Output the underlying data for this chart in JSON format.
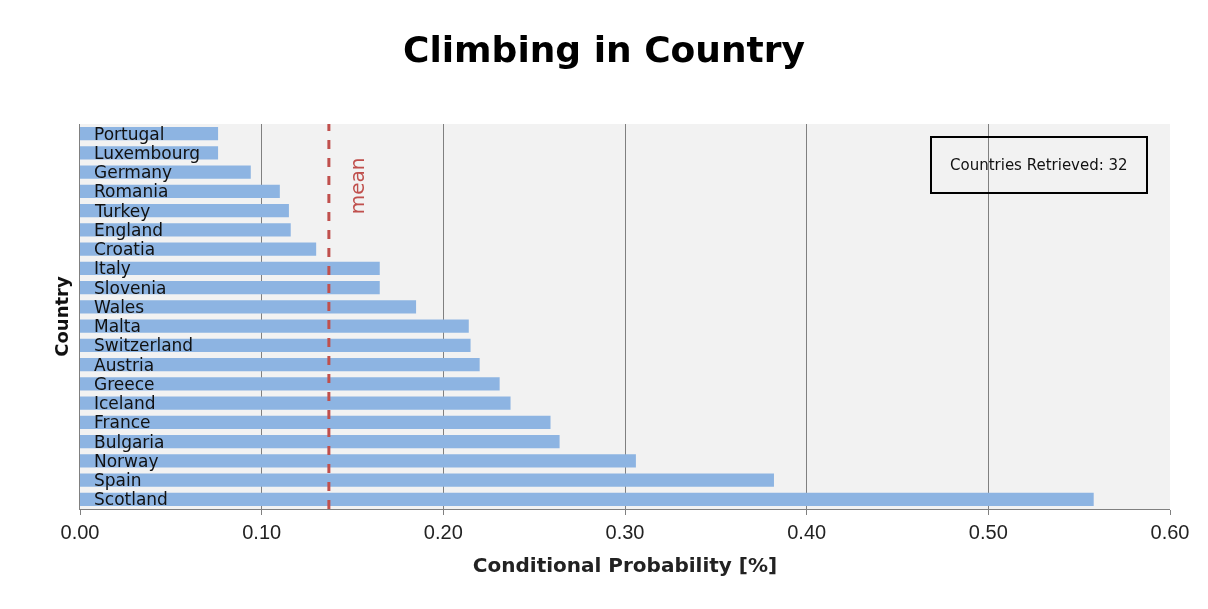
{
  "chart_data": {
    "type": "bar",
    "orientation": "horizontal",
    "title": "Climbing in Country",
    "xlabel": "Conditional Probability [%]",
    "ylabel": "Country",
    "categories": [
      "Portugal",
      "Luxembourg",
      "Germany",
      "Romania",
      "Turkey",
      "England",
      "Croatia",
      "Italy",
      "Slovenia",
      "Wales",
      "Malta",
      "Switzerland",
      "Austria",
      "Greece",
      "Iceland",
      "France",
      "Bulgaria",
      "Norway",
      "Spain",
      "Scotland"
    ],
    "values": [
      0.076,
      0.076,
      0.094,
      0.11,
      0.115,
      0.116,
      0.13,
      0.165,
      0.165,
      0.185,
      0.214,
      0.215,
      0.22,
      0.231,
      0.237,
      0.259,
      0.264,
      0.306,
      0.382,
      0.558
    ],
    "color": "#8db4e2",
    "xlim": [
      0,
      0.6
    ],
    "xticks": [
      {
        "value": 0,
        "label": "0.00"
      },
      {
        "value": 0.1,
        "label": "0.10"
      },
      {
        "value": 0.2,
        "label": "0.20"
      },
      {
        "value": 0.3,
        "label": "0.30"
      },
      {
        "value": 0.4,
        "label": "0.40"
      },
      {
        "value": 0.5,
        "label": "0.50"
      },
      {
        "value": 0.6,
        "label": "0.60"
      }
    ],
    "ref_lines": [
      {
        "axis": "x",
        "value": 0.137,
        "label": "mean",
        "color": "#c0504d",
        "line_style": "dashed"
      }
    ],
    "annotations": [
      "Countries Retrieved: 32"
    ],
    "grid": "x"
  }
}
